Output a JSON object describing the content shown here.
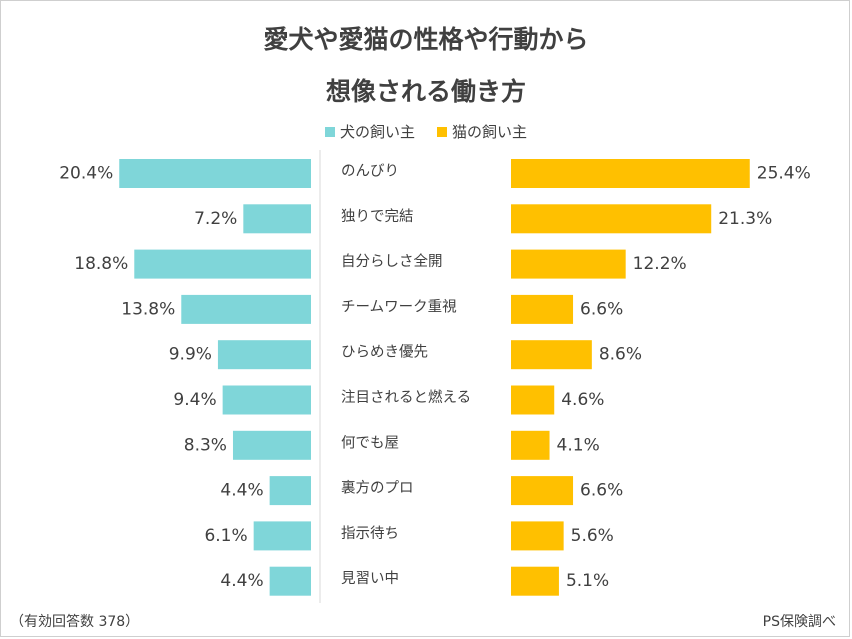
{
  "title_line1": "愛犬や愛猫の性格や行動から",
  "title_line2": "想像される働き方",
  "note": "（有効回答数 378）",
  "source": "PS保険調べ",
  "colors": {
    "dog": "#7fd6d9",
    "cat": "#ffc000",
    "text": "#404040",
    "axis": "#d9d9d9"
  },
  "chart_data": {
    "type": "bar",
    "orientation": "horizontal-butterfly",
    "categories": [
      "のんびり",
      "独りで完結",
      "自分らしさ全開",
      "チームワーク重視",
      "ひらめき優先",
      "注目されると燃える",
      "何でも屋",
      "裏方のプロ",
      "指示待ち",
      "見習い中"
    ],
    "series": [
      {
        "name": "犬の飼い主",
        "values": [
          20.4,
          7.2,
          18.8,
          13.8,
          9.9,
          9.4,
          8.3,
          4.4,
          6.1,
          4.4
        ],
        "labels": [
          "20.4%",
          "7.2%",
          "18.8%",
          "13.8%",
          "9.9%",
          "9.4%",
          "8.3%",
          "4.4%",
          "6.1%",
          "4.4%"
        ]
      },
      {
        "name": "猫の飼い主",
        "values": [
          25.4,
          21.3,
          12.2,
          6.6,
          8.6,
          4.6,
          4.1,
          6.6,
          5.6,
          5.1
        ],
        "labels": [
          "25.4%",
          "21.3%",
          "12.2%",
          "6.6%",
          "8.6%",
          "4.6%",
          "4.1%",
          "6.6%",
          "5.6%",
          "5.1%"
        ]
      }
    ],
    "legend_position": "top",
    "grid": false
  }
}
